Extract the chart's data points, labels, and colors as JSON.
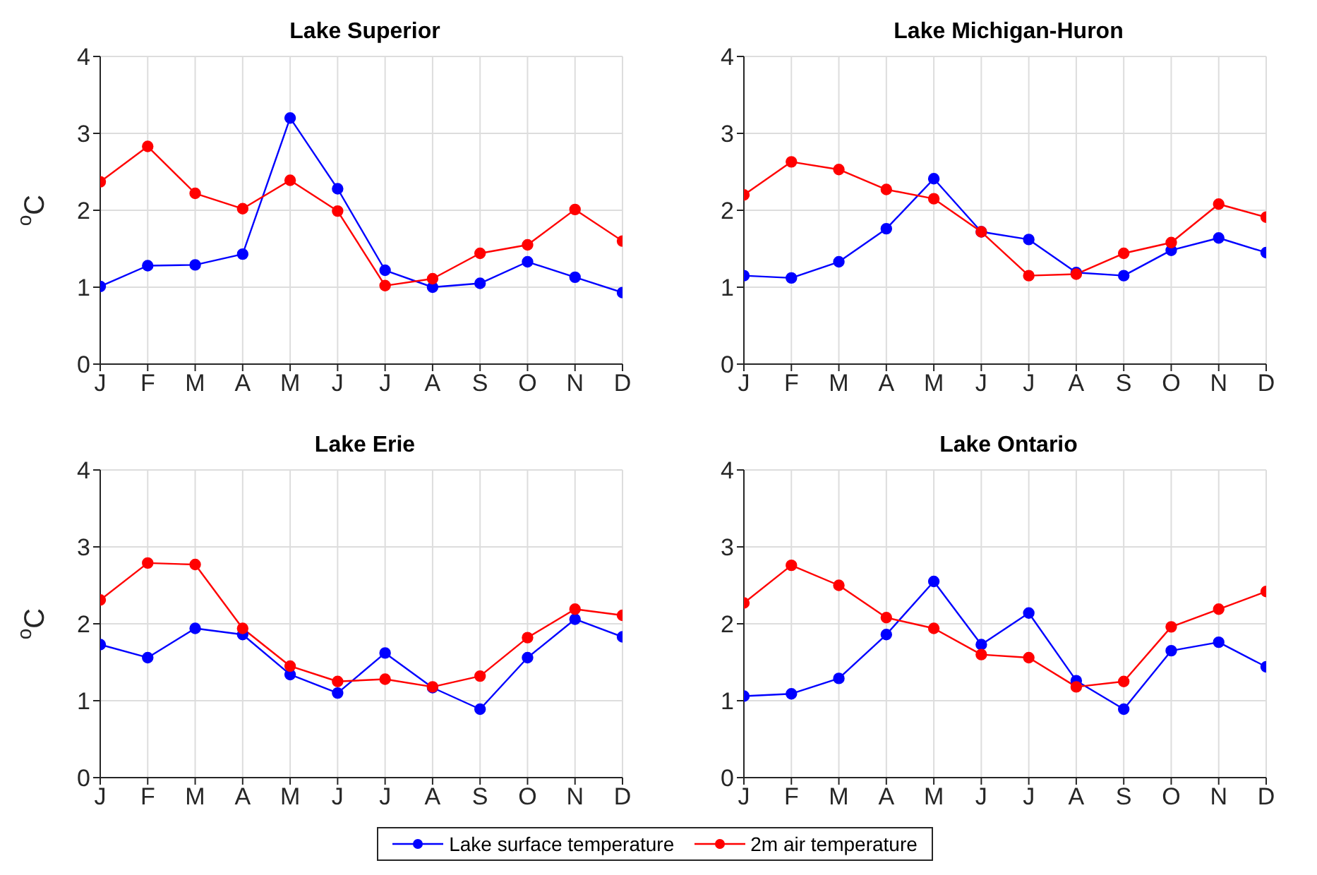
{
  "chart_data": [
    {
      "type": "line",
      "title": "Lake Superior",
      "ylabel": "$^{o}$C",
      "categories": [
        "J",
        "F",
        "M",
        "A",
        "M",
        "J",
        "J",
        "A",
        "S",
        "O",
        "N",
        "D"
      ],
      "ylim": [
        0,
        4
      ],
      "yticks": [
        0,
        1,
        2,
        3,
        4
      ],
      "grid": true,
      "marker": "circle",
      "line_style": "solid",
      "legend": "bottom",
      "series": [
        {
          "name": "Lake surface temperature",
          "color": "#0000ff",
          "values": [
            1.01,
            1.28,
            1.29,
            1.43,
            3.2,
            2.28,
            1.22,
            1.0,
            1.05,
            1.33,
            1.13,
            0.93
          ]
        },
        {
          "name": "2m air temperature",
          "color": "#ff0000",
          "values": [
            2.37,
            2.83,
            2.22,
            2.02,
            2.39,
            1.99,
            1.02,
            1.11,
            1.44,
            1.55,
            2.01,
            1.6
          ]
        }
      ]
    },
    {
      "type": "line",
      "title": "Lake Michigan-Huron",
      "categories": [
        "J",
        "F",
        "M",
        "A",
        "M",
        "J",
        "J",
        "A",
        "S",
        "O",
        "N",
        "D"
      ],
      "ylim": [
        0,
        4
      ],
      "yticks": [
        0,
        1,
        2,
        3,
        4
      ],
      "grid": true,
      "marker": "circle",
      "line_style": "solid",
      "series": [
        {
          "color": "#0000ff",
          "values": [
            1.15,
            1.12,
            1.33,
            1.76,
            2.41,
            1.72,
            1.62,
            1.19,
            1.15,
            1.48,
            1.64,
            1.45
          ]
        },
        {
          "color": "#ff0000",
          "values": [
            2.2,
            2.63,
            2.53,
            2.27,
            2.15,
            1.72,
            1.15,
            1.17,
            1.44,
            1.58,
            2.08,
            1.91
          ]
        }
      ]
    },
    {
      "type": "line",
      "title": "Lake Erie",
      "ylabel": "$^{o}$C",
      "categories": [
        "J",
        "F",
        "M",
        "A",
        "M",
        "J",
        "J",
        "A",
        "S",
        "O",
        "N",
        "D"
      ],
      "ylim": [
        0,
        4
      ],
      "yticks": [
        0,
        1,
        2,
        3,
        4
      ],
      "grid": true,
      "marker": "circle",
      "line_style": "solid",
      "series": [
        {
          "color": "#0000ff",
          "values": [
            1.73,
            1.56,
            1.94,
            1.86,
            1.34,
            1.1,
            1.62,
            1.17,
            0.89,
            1.56,
            2.06,
            1.83
          ]
        },
        {
          "color": "#ff0000",
          "values": [
            2.31,
            2.79,
            2.77,
            1.94,
            1.45,
            1.25,
            1.28,
            1.18,
            1.32,
            1.82,
            2.19,
            2.11
          ]
        }
      ]
    },
    {
      "type": "line",
      "title": "Lake Ontario",
      "categories": [
        "J",
        "F",
        "M",
        "A",
        "M",
        "J",
        "J",
        "A",
        "S",
        "O",
        "N",
        "D"
      ],
      "ylim": [
        0,
        4
      ],
      "yticks": [
        0,
        1,
        2,
        3,
        4
      ],
      "grid": true,
      "marker": "circle",
      "line_style": "solid",
      "series": [
        {
          "color": "#0000ff",
          "values": [
            1.06,
            1.09,
            1.29,
            1.86,
            2.55,
            1.73,
            2.14,
            1.26,
            0.89,
            1.65,
            1.76,
            1.44
          ]
        },
        {
          "color": "#ff0000",
          "values": [
            2.27,
            2.76,
            2.5,
            2.08,
            1.94,
            1.6,
            1.56,
            1.18,
            1.25,
            1.96,
            2.19,
            2.42
          ]
        }
      ]
    }
  ]
}
